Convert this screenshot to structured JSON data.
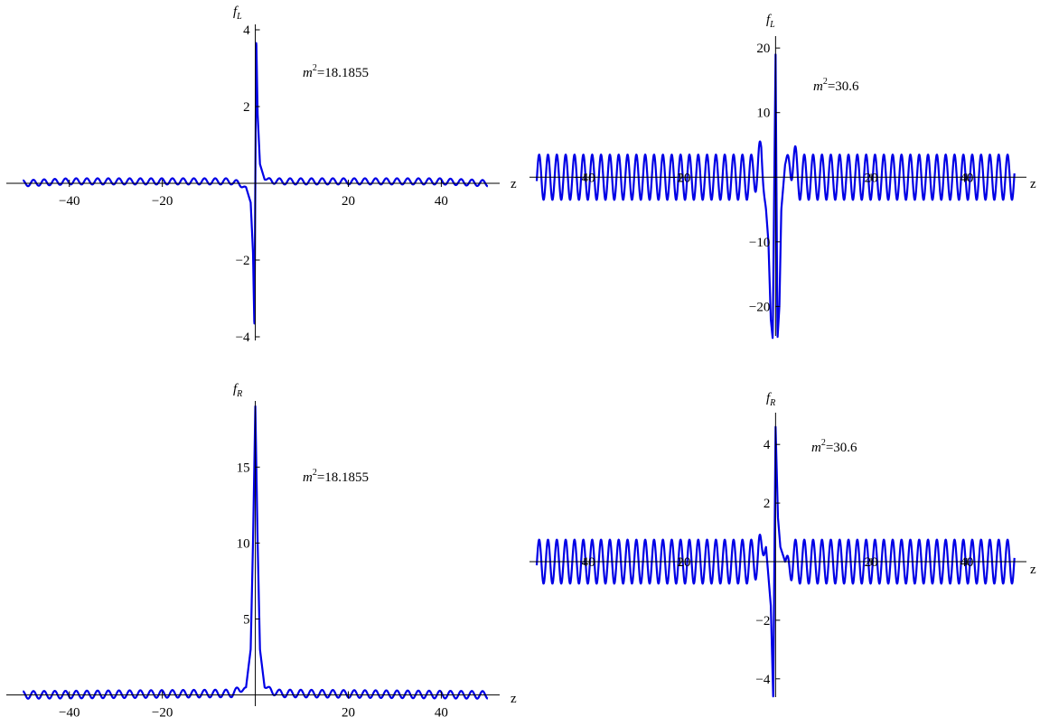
{
  "chart_data": [
    {
      "type": "line",
      "xlabel": "z",
      "ylabel": {
        "base": "f",
        "sub": "L"
      },
      "annotation": {
        "base": "m",
        "sup": "2",
        "value": "=18.1855"
      },
      "xlim": [
        -52,
        51
      ],
      "ylim": [
        -4,
        4
      ],
      "xticks": [
        -40,
        -20,
        20,
        40
      ],
      "xtick_labels": [
        "−40",
        "−20",
        "20",
        "40"
      ],
      "yticks": [
        -4,
        -2,
        2,
        4
      ],
      "ytick_labels": [
        "−4",
        "−2",
        "2",
        "4"
      ],
      "series": [
        {
          "color": "#0000e6",
          "x": [
            -50,
            -40,
            -20,
            -5,
            -2,
            -1,
            -0.5,
            -0.2,
            0,
            0.2,
            0.5,
            1,
            2,
            5,
            20,
            40,
            50
          ],
          "y": [
            0,
            0.05,
            0.05,
            0.05,
            -0.1,
            -0.5,
            -1.8,
            -3.8,
            0,
            3.8,
            1.8,
            0.5,
            0.1,
            0.05,
            0.05,
            0.05,
            0
          ],
          "oscillation_amplitude": 0.08,
          "oscillation_period": 2.3
        }
      ]
    },
    {
      "type": "line",
      "xlabel": "z",
      "ylabel": {
        "base": "f",
        "sub": "L"
      },
      "annotation": {
        "base": "m",
        "sup": "2",
        "value": "=30.6"
      },
      "xlim": [
        -50,
        51
      ],
      "ylim": [
        -24,
        21
      ],
      "xticks": [
        -40,
        -20,
        20,
        40
      ],
      "xtick_labels": [
        "−40",
        "−20",
        "20",
        "40"
      ],
      "yticks": [
        -20,
        -10,
        10,
        20
      ],
      "ytick_labels": [
        "−20",
        "−10",
        "10",
        "20"
      ],
      "series": [
        {
          "color": "#0000e6",
          "x": [
            -50,
            -5,
            -3,
            -2,
            -1.5,
            -1,
            -0.6,
            0,
            0.4,
            0.8,
            1.2,
            2,
            3,
            5,
            50
          ],
          "y": [
            0,
            0,
            3,
            -5,
            -10,
            -22,
            -25,
            19,
            -25,
            -20,
            -5,
            2,
            3,
            0,
            0
          ],
          "oscillation_amplitude": 3.5,
          "oscillation_period": 1.85
        }
      ]
    },
    {
      "type": "line",
      "xlabel": "z",
      "ylabel": {
        "base": "f",
        "sub": "R"
      },
      "annotation": {
        "base": "m",
        "sup": "2",
        "value": "=18.1855"
      },
      "xlim": [
        -52,
        51
      ],
      "ylim": [
        -0.5,
        19
      ],
      "xticks": [
        -40,
        -20,
        20,
        40
      ],
      "xtick_labels": [
        "−40",
        "−20",
        "20",
        "40"
      ],
      "yticks": [
        5,
        10,
        15
      ],
      "ytick_labels": [
        "5",
        "10",
        "15"
      ],
      "series": [
        {
          "color": "#0000e6",
          "x": [
            -50,
            -5,
            -2,
            -1,
            -0.5,
            0,
            0.5,
            1,
            2,
            5,
            50
          ],
          "y": [
            0,
            0.1,
            0.5,
            3,
            10,
            19,
            10,
            3,
            0.5,
            0.1,
            0
          ],
          "oscillation_amplitude": 0.25,
          "oscillation_period": 2.3
        }
      ]
    },
    {
      "type": "line",
      "xlabel": "z",
      "ylabel": {
        "base": "f",
        "sub": "R"
      },
      "annotation": {
        "base": "m",
        "sup": "2",
        "value": "=30.6"
      },
      "xlim": [
        -50,
        51
      ],
      "ylim": [
        -4.5,
        4.9
      ],
      "xticks": [
        -40,
        -20,
        20,
        40
      ],
      "xtick_labels": [
        "−40",
        "−20",
        "20",
        "40"
      ],
      "yticks": [
        -4,
        -2,
        2,
        4
      ],
      "ytick_labels": [
        "−4",
        "−2",
        "2",
        "4"
      ],
      "series": [
        {
          "color": "#0000e6",
          "x": [
            -50,
            -5,
            -2,
            -1,
            -0.5,
            0,
            0.5,
            1,
            2,
            5,
            50
          ],
          "y": [
            0,
            0,
            0.5,
            -1.5,
            -4.6,
            4.6,
            1.5,
            0.5,
            0,
            0,
            0
          ],
          "oscillation_amplitude": 0.75,
          "oscillation_period": 1.85
        }
      ]
    }
  ]
}
